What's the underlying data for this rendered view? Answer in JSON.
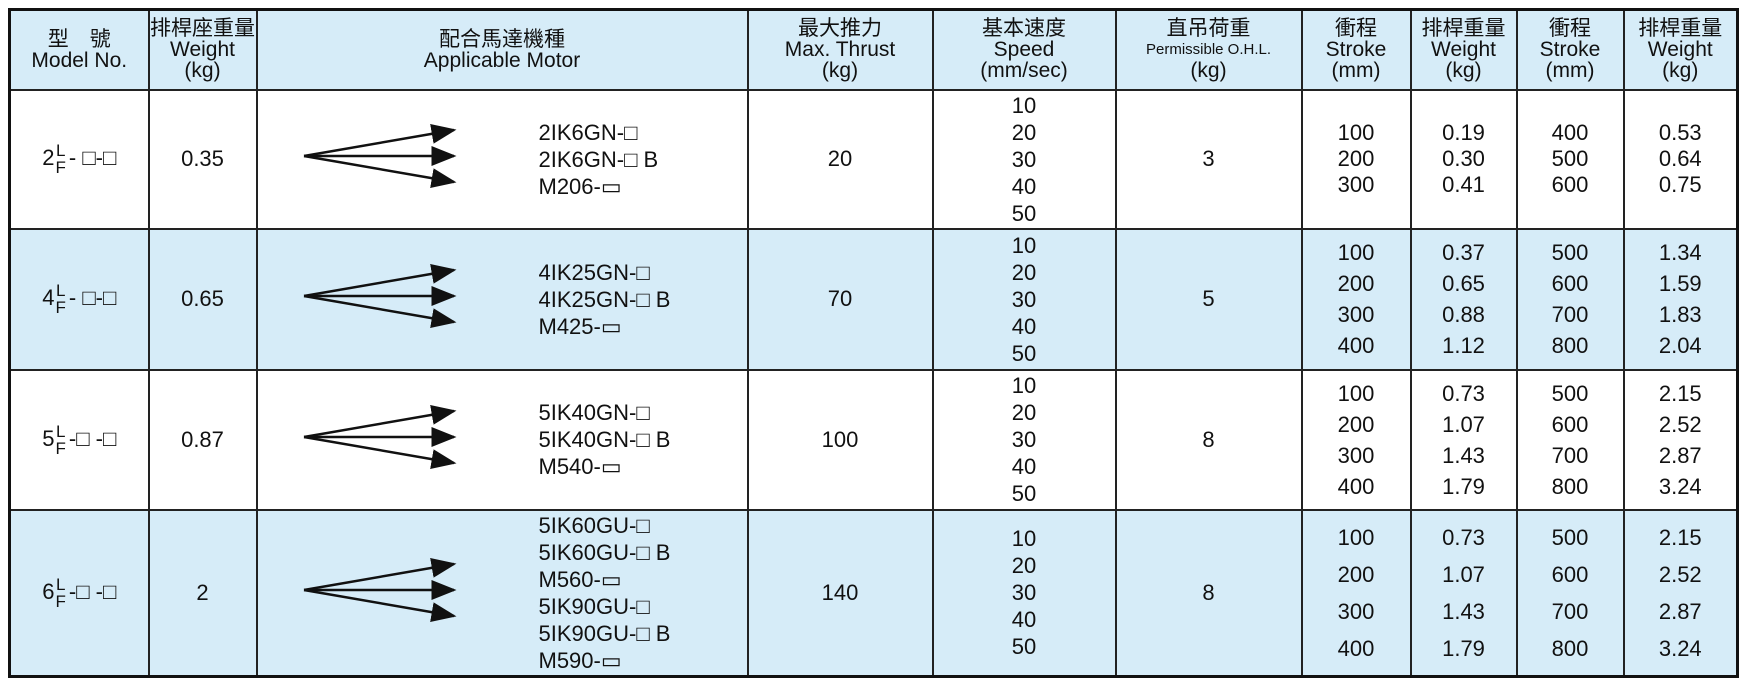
{
  "header": {
    "columns": [
      {
        "lines": [
          "型　號",
          "Model No."
        ]
      },
      {
        "lines": [
          "排桿座重量",
          "Weight",
          "(kg)"
        ]
      },
      {
        "lines": [
          "配合馬達機種",
          "Applicable Motor"
        ]
      },
      {
        "lines": [
          "最大推力",
          "Max. Thrust",
          "(kg)"
        ]
      },
      {
        "lines": [
          "基本速度",
          "Speed",
          "(mm/sec)"
        ]
      },
      {
        "lines": [
          "直吊荷重",
          "Permissible O.H.L.",
          "(kg)"
        ]
      },
      {
        "lines": [
          "衝程",
          "Stroke",
          "(mm)"
        ]
      },
      {
        "lines": [
          "排桿重量",
          "Weight",
          "(kg)"
        ]
      },
      {
        "lines": [
          "衝程",
          "Stroke",
          "(mm)"
        ]
      },
      {
        "lines": [
          "排桿重量",
          "Weight",
          "(kg)"
        ]
      }
    ]
  },
  "rows": [
    {
      "model": {
        "num": "2",
        "upper": "L",
        "lower": "F",
        "suffix": "- □-□"
      },
      "weight": "0.35",
      "motors": [
        "2IK6GN-□",
        "2IK6GN-□ B",
        "M206-▭"
      ],
      "thrust": "20",
      "speeds": [
        "10",
        "20",
        "30",
        "40",
        "50"
      ],
      "ohl": "3",
      "strokes_a": [
        "100",
        "200",
        "300"
      ],
      "weights_a": [
        "0.19",
        "0.30",
        "0.41"
      ],
      "strokes_b": [
        "400",
        "500",
        "600"
      ],
      "weights_b": [
        "0.53",
        "0.64",
        "0.75"
      ]
    },
    {
      "model": {
        "num": "4",
        "upper": "L",
        "lower": "F",
        "suffix": "- □-□"
      },
      "weight": "0.65",
      "motors": [
        "4IK25GN-□",
        "4IK25GN-□ B",
        "M425-▭"
      ],
      "thrust": "70",
      "speeds": [
        "10",
        "20",
        "30",
        "40",
        "50"
      ],
      "ohl": "5",
      "strokes_a": [
        "100",
        "200",
        "300",
        "400"
      ],
      "weights_a": [
        "0.37",
        "0.65",
        "0.88",
        "1.12"
      ],
      "strokes_b": [
        "500",
        "600",
        "700",
        "800"
      ],
      "weights_b": [
        "1.34",
        "1.59",
        "1.83",
        "2.04"
      ]
    },
    {
      "model": {
        "num": "5",
        "upper": "L",
        "lower": "F",
        "suffix": "-□ -□"
      },
      "weight": "0.87",
      "motors": [
        "5IK40GN-□",
        "5IK40GN-□ B",
        "M540-▭"
      ],
      "thrust": "100",
      "speeds": [
        "10",
        "20",
        "30",
        "40",
        "50"
      ],
      "ohl": "8",
      "strokes_a": [
        "100",
        "200",
        "300",
        "400"
      ],
      "weights_a": [
        "0.73",
        "1.07",
        "1.43",
        "1.79"
      ],
      "strokes_b": [
        "500",
        "600",
        "700",
        "800"
      ],
      "weights_b": [
        "2.15",
        "2.52",
        "2.87",
        "3.24"
      ]
    },
    {
      "model": {
        "num": "6",
        "upper": "L",
        "lower": "F",
        "suffix": "-□ -□"
      },
      "weight": "2",
      "motors": [
        "5IK60GU-□",
        "5IK60GU-□ B",
        "M560-▭",
        "5IK90GU-□",
        "5IK90GU-□ B",
        "M590-▭"
      ],
      "thrust": "140",
      "speeds": [
        "10",
        "20",
        "30",
        "40",
        "50"
      ],
      "ohl": "8",
      "strokes_a": [
        "100",
        "200",
        "300",
        "400"
      ],
      "weights_a": [
        "0.73",
        "1.07",
        "1.43",
        "1.79"
      ],
      "strokes_b": [
        "500",
        "600",
        "700",
        "800"
      ],
      "weights_b": [
        "2.15",
        "2.52",
        "2.87",
        "3.24"
      ]
    }
  ]
}
